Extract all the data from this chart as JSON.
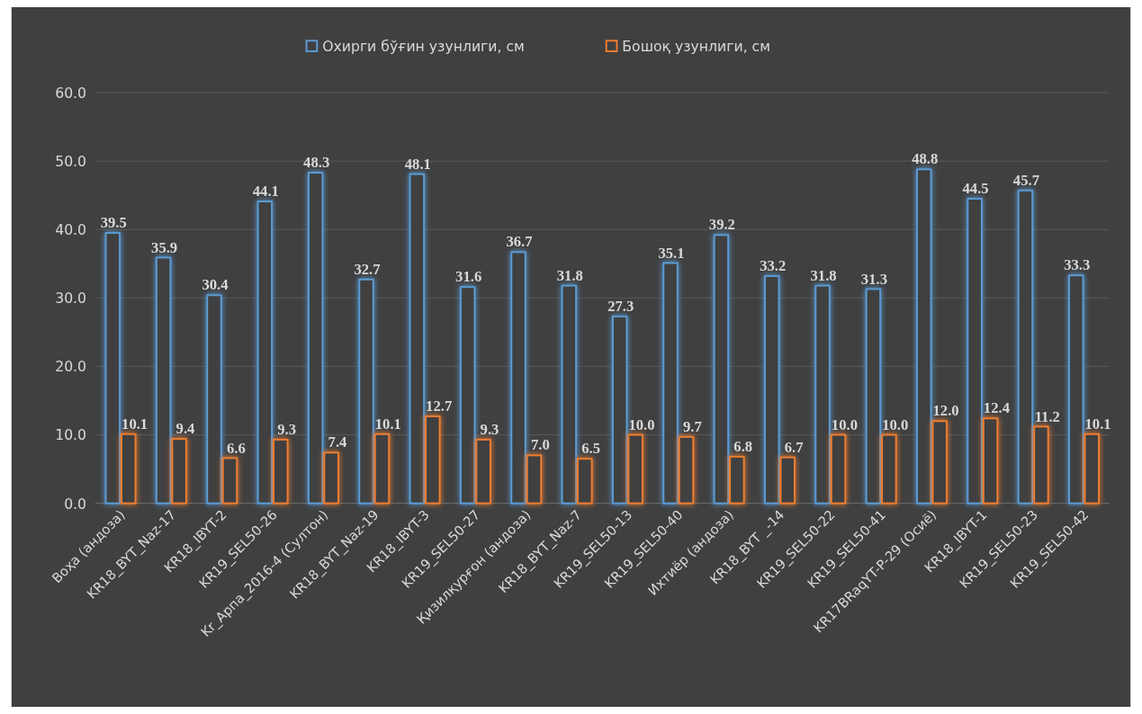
{
  "chart_data": {
    "type": "bar",
    "categories": [
      "Воҳа (андоза)",
      "KR18_BYT_Naz-17",
      "KR18_IBYT-2",
      "KR19_SEL50-26",
      "Kr_Арпа_2016-4 (Султон)",
      "KR18_BYT_Naz-19",
      "KR18_IBYT-3",
      "KR19_SEL50-27",
      "Қизилқурғон (андоза)",
      "KR18_BYT_Naz-7",
      "KR19_SEL50-13",
      "KR19_SEL50-40",
      "Ихтиёр (андоза)",
      "KR18_BYT _-14",
      "KR19_SEL50-22",
      "KR19_SEL50-41",
      "KR17BRaqYT-P-29 (Осиё)",
      "KR18_IBYT-1",
      "KR19_SEL50-23",
      "KR19_SEL50-42"
    ],
    "series": [
      {
        "name": "Охирги бўғин узунлиги, см",
        "color": "#5b9bd5",
        "values": [
          39.5,
          35.9,
          30.4,
          44.1,
          48.3,
          32.7,
          48.1,
          31.6,
          36.7,
          31.8,
          27.3,
          35.1,
          39.2,
          33.2,
          31.8,
          31.3,
          48.8,
          44.5,
          45.7,
          33.3
        ],
        "value_labels": [
          "39.5",
          "35.9",
          "30.4",
          "44.1",
          "48.3",
          "32.7",
          "48.1",
          "31.6",
          "36.7",
          "31.8",
          "27.3",
          "35.1",
          "39.2",
          "33.2",
          "31.8",
          "31.3",
          "48.8",
          "44.5",
          "45.7",
          "33.3"
        ]
      },
      {
        "name": "Бошоқ узунлиги, см",
        "color": "#ed7d31",
        "values": [
          10.1,
          9.4,
          6.6,
          9.3,
          7.4,
          10.1,
          12.7,
          9.3,
          7.0,
          6.5,
          10.0,
          9.7,
          6.8,
          6.7,
          10.0,
          10.0,
          12.0,
          12.4,
          11.2,
          10.1
        ],
        "value_labels": [
          "10.1",
          "9.4",
          "6.6",
          "9.3",
          "7.4",
          "10.1",
          "12.7",
          "9.3",
          "7.0",
          "6.5",
          "10.0",
          "9.7",
          "6.8",
          "6.7",
          "10.0",
          "10.0",
          "12.0",
          "12.4",
          "11.2",
          "10.1"
        ]
      }
    ],
    "ylim": [
      0,
      60
    ],
    "yticks": [
      {
        "value": 0,
        "label": "0.0"
      },
      {
        "value": 10,
        "label": "10.0"
      },
      {
        "value": 20,
        "label": "20.0"
      },
      {
        "value": 30,
        "label": "30.0"
      },
      {
        "value": 40,
        "label": "40.0"
      },
      {
        "value": 50,
        "label": "50.0"
      },
      {
        "value": 60,
        "label": "60.0"
      }
    ],
    "grid": "y",
    "legend": "top"
  }
}
